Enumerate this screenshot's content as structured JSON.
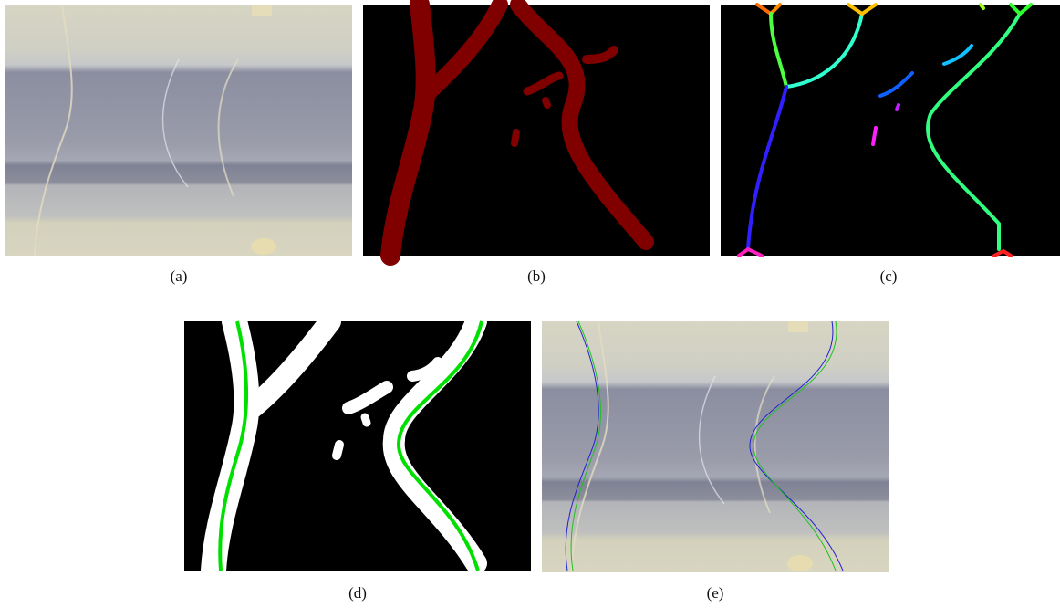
{
  "figure": {
    "panels": [
      {
        "caption": "(a)"
      },
      {
        "caption": "(b)"
      },
      {
        "caption": "(c)"
      },
      {
        "caption": "(d)"
      },
      {
        "caption": "(e)"
      }
    ]
  }
}
